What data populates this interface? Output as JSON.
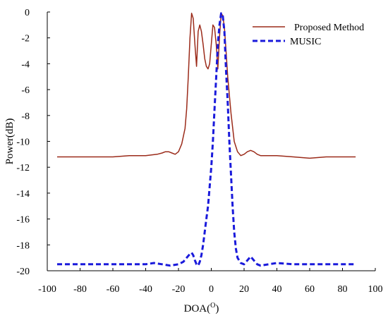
{
  "chart_data": {
    "type": "line",
    "title": "",
    "xlabel": "DOA(",
    "xlabel_superscript": "O",
    "xlabel_close": ")",
    "ylabel": "Power(dB)",
    "xlim": [
      -100,
      100
    ],
    "ylim": [
      -20,
      0
    ],
    "xticks": [
      "-100",
      "-80",
      "-60",
      "-40",
      "-20",
      "0",
      "20",
      "40",
      "60",
      "80",
      "100"
    ],
    "yticks": [
      "0",
      "-2",
      "-4",
      "-6",
      "-8",
      "-10",
      "-12",
      "-14",
      "-16",
      "-18",
      "-20"
    ],
    "grid": false,
    "legend_position": "top-right",
    "series": [
      {
        "name": "Proposed Method",
        "color": "#9b2b1a",
        "style": "solid",
        "x": [
          -94,
          -80,
          -70,
          -60,
          -50,
          -40,
          -33,
          -30,
          -28,
          -26,
          -24,
          -22,
          -20,
          -18,
          -16,
          -15,
          -14,
          -13,
          -12,
          -11,
          -10,
          -9,
          -8,
          -7,
          -6,
          -5,
          -4,
          -3,
          -2,
          -1,
          0,
          1,
          2,
          3,
          4,
          5,
          6,
          7,
          8,
          9,
          10,
          12,
          14,
          16,
          18,
          20,
          22,
          24,
          26,
          28,
          30,
          35,
          40,
          50,
          60,
          70,
          80,
          88
        ],
        "y": [
          -11.2,
          -11.2,
          -11.2,
          -11.2,
          -11.1,
          -11.1,
          -11.0,
          -10.9,
          -10.8,
          -10.8,
          -10.9,
          -11.0,
          -10.8,
          -10.2,
          -9.0,
          -7.5,
          -5.0,
          -2.0,
          -0.1,
          -0.5,
          -2.5,
          -4.2,
          -1.5,
          -1.0,
          -1.5,
          -2.5,
          -3.6,
          -4.2,
          -4.4,
          -4.0,
          -2.5,
          -1.0,
          -1.2,
          -2.5,
          -4.4,
          -2.0,
          -0.1,
          -0.3,
          -1.2,
          -3.0,
          -5.0,
          -7.8,
          -10.0,
          -10.8,
          -11.1,
          -11.0,
          -10.8,
          -10.7,
          -10.8,
          -11.0,
          -11.1,
          -11.1,
          -11.1,
          -11.2,
          -11.3,
          -11.2,
          -11.2,
          -11.2
        ]
      },
      {
        "name": "MUSIC",
        "color": "#1a1adb",
        "style": "dashed",
        "x": [
          -94,
          -80,
          -70,
          -60,
          -50,
          -40,
          -35,
          -30,
          -25,
          -20,
          -17,
          -15,
          -13,
          -12,
          -11,
          -10,
          -9,
          -8,
          -7,
          -6,
          -5,
          -4,
          -3,
          -2,
          -1,
          0,
          1,
          2,
          3,
          4,
          5,
          6,
          7,
          8,
          9,
          10,
          11,
          12,
          13,
          14,
          15,
          16,
          18,
          20,
          22,
          24,
          26,
          28,
          30,
          35,
          40,
          50,
          60,
          70,
          80,
          88
        ],
        "y": [
          -19.5,
          -19.5,
          -19.5,
          -19.5,
          -19.5,
          -19.5,
          -19.4,
          -19.5,
          -19.6,
          -19.5,
          -19.3,
          -19.0,
          -18.7,
          -18.6,
          -18.8,
          -19.2,
          -19.5,
          -19.6,
          -19.3,
          -18.8,
          -18.0,
          -17.0,
          -16.0,
          -15.0,
          -13.5,
          -12.0,
          -10.0,
          -7.5,
          -5.0,
          -2.5,
          -1.0,
          -0.1,
          -0.3,
          -1.5,
          -4.5,
          -7.0,
          -10.0,
          -12.5,
          -15.0,
          -17.0,
          -18.3,
          -19.0,
          -19.4,
          -19.5,
          -19.2,
          -18.9,
          -19.2,
          -19.5,
          -19.6,
          -19.5,
          -19.4,
          -19.5,
          -19.5,
          -19.5,
          -19.5,
          -19.5
        ]
      }
    ]
  }
}
